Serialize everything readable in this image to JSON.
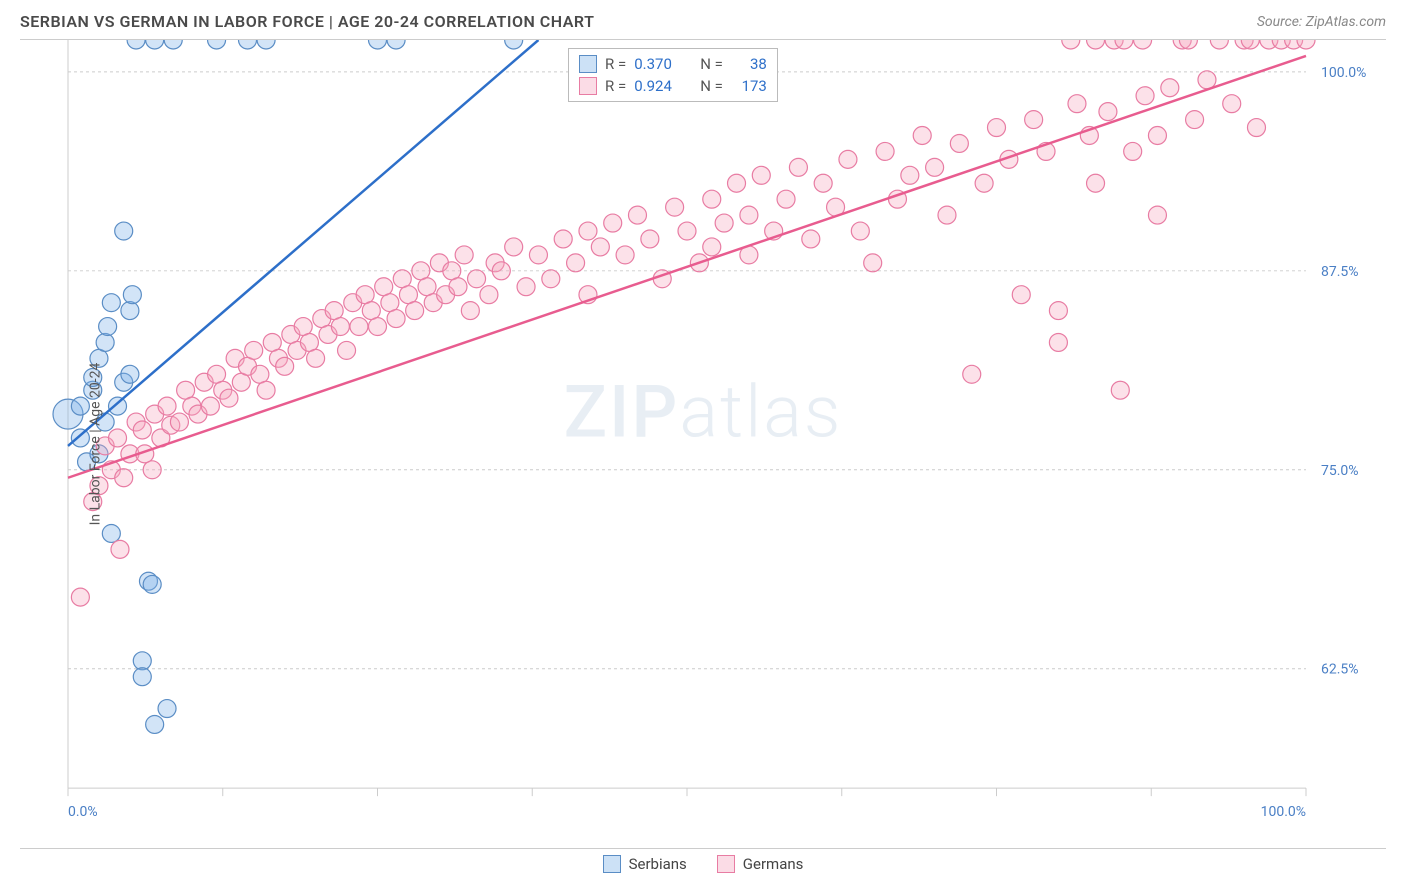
{
  "title": "SERBIAN VS GERMAN IN LABOR FORCE | AGE 20-24 CORRELATION CHART",
  "source": "Source: ZipAtlas.com",
  "watermark_prefix": "ZIP",
  "watermark_suffix": "atlas",
  "chart": {
    "type": "scatter",
    "background_color": "#ffffff",
    "grid_color": "#cccccc",
    "border_color": "#cccccc",
    "ylabel": "In Labor Force | Age 20-24",
    "ylabel_fontsize": 14,
    "ylabel_color": "#555555",
    "xlim": [
      0,
      100
    ],
    "ylim": [
      55,
      102
    ],
    "xtick_positions": [
      0,
      12.5,
      25,
      37.5,
      50,
      62.5,
      75,
      87.5,
      100
    ],
    "xtick_labels": {
      "0": "0.0%",
      "100": "100.0%"
    },
    "ytick_positions": [
      62.5,
      75.0,
      87.5,
      100.0
    ],
    "ytick_labels": [
      "62.5%",
      "75.0%",
      "87.5%",
      "100.0%"
    ],
    "axis_label_color": "#4a7fc5",
    "axis_label_fontsize": 14,
    "marker_radius": 9,
    "marker_radius_large": 15,
    "marker_opacity": 0.45,
    "line_width": 2.5,
    "series": [
      {
        "name": "Serbians",
        "legend_label": "Serbians",
        "color": "#7fb3e8",
        "fill_color": "rgba(127,179,232,0.35)",
        "stroke_color": "#5a8dc5",
        "line_color": "#2d6fc9",
        "R": "0.370",
        "N": "38",
        "trendline": {
          "x1": 0,
          "y1": 76.5,
          "x2": 38,
          "y2": 102
        },
        "points": [
          [
            0,
            78.5,
            15
          ],
          [
            1,
            77,
            9
          ],
          [
            1,
            79,
            9
          ],
          [
            1.5,
            75.5,
            9
          ],
          [
            2,
            80,
            9
          ],
          [
            2,
            80.8,
            9
          ],
          [
            2.5,
            82,
            9
          ],
          [
            2.5,
            76,
            9
          ],
          [
            3,
            78,
            9
          ],
          [
            3,
            83,
            9
          ],
          [
            3.2,
            84,
            9
          ],
          [
            3.5,
            85.5,
            9
          ],
          [
            3.5,
            71,
            9
          ],
          [
            4,
            79,
            9
          ],
          [
            4.5,
            80.5,
            9
          ],
          [
            4.5,
            90,
            9
          ],
          [
            5,
            81,
            9
          ],
          [
            5,
            85,
            9
          ],
          [
            5.2,
            86,
            9
          ],
          [
            6,
            63,
            9
          ],
          [
            6,
            62,
            9
          ],
          [
            6.5,
            68,
            9
          ],
          [
            6.8,
            67.8,
            9
          ],
          [
            7,
            59,
            9
          ],
          [
            8,
            60,
            9
          ],
          [
            5.5,
            102,
            9
          ],
          [
            7,
            102,
            9
          ],
          [
            8.5,
            102,
            9
          ],
          [
            12,
            102,
            9
          ],
          [
            14.5,
            102,
            9
          ],
          [
            16,
            102,
            9
          ],
          [
            25,
            102,
            9
          ],
          [
            26.5,
            102,
            9
          ],
          [
            36,
            102,
            9
          ]
        ]
      },
      {
        "name": "Germans",
        "legend_label": "Germans",
        "color": "#f5a8c0",
        "fill_color": "rgba(245,168,192,0.35)",
        "stroke_color": "#e87ca3",
        "line_color": "#e85c8f",
        "R": "0.924",
        "N": "173",
        "trendline": {
          "x1": 0,
          "y1": 74.5,
          "x2": 100,
          "y2": 101
        },
        "points": [
          [
            1,
            67,
            9
          ],
          [
            2,
            73,
            9
          ],
          [
            2.5,
            74,
            9
          ],
          [
            3,
            76.5,
            9
          ],
          [
            3.5,
            75,
            9
          ],
          [
            4,
            77,
            9
          ],
          [
            4.2,
            70,
            9
          ],
          [
            4.5,
            74.5,
            9
          ],
          [
            5,
            76,
            9
          ],
          [
            5.5,
            78,
            9
          ],
          [
            6,
            77.5,
            9
          ],
          [
            6.2,
            76,
            9
          ],
          [
            6.8,
            75,
            9
          ],
          [
            7,
            78.5,
            9
          ],
          [
            7.5,
            77,
            9
          ],
          [
            8,
            79,
            9
          ],
          [
            8.3,
            77.8,
            9
          ],
          [
            9,
            78,
            9
          ],
          [
            9.5,
            80,
            9
          ],
          [
            10,
            79,
            9
          ],
          [
            10.5,
            78.5,
            9
          ],
          [
            11,
            80.5,
            9
          ],
          [
            11.5,
            79,
            9
          ],
          [
            12,
            81,
            9
          ],
          [
            12.5,
            80,
            9
          ],
          [
            13,
            79.5,
            9
          ],
          [
            13.5,
            82,
            9
          ],
          [
            14,
            80.5,
            9
          ],
          [
            14.5,
            81.5,
            9
          ],
          [
            15,
            82.5,
            9
          ],
          [
            15.5,
            81,
            9
          ],
          [
            16,
            80,
            9
          ],
          [
            16.5,
            83,
            9
          ],
          [
            17,
            82,
            9
          ],
          [
            17.5,
            81.5,
            9
          ],
          [
            18,
            83.5,
            9
          ],
          [
            18.5,
            82.5,
            9
          ],
          [
            19,
            84,
            9
          ],
          [
            19.5,
            83,
            9
          ],
          [
            20,
            82,
            9
          ],
          [
            20.5,
            84.5,
            9
          ],
          [
            21,
            83.5,
            9
          ],
          [
            21.5,
            85,
            9
          ],
          [
            22,
            84,
            9
          ],
          [
            22.5,
            82.5,
            9
          ],
          [
            23,
            85.5,
            9
          ],
          [
            23.5,
            84,
            9
          ],
          [
            24,
            86,
            9
          ],
          [
            24.5,
            85,
            9
          ],
          [
            25,
            84,
            9
          ],
          [
            25.5,
            86.5,
            9
          ],
          [
            26,
            85.5,
            9
          ],
          [
            26.5,
            84.5,
            9
          ],
          [
            27,
            87,
            9
          ],
          [
            27.5,
            86,
            9
          ],
          [
            28,
            85,
            9
          ],
          [
            28.5,
            87.5,
            9
          ],
          [
            29,
            86.5,
            9
          ],
          [
            29.5,
            85.5,
            9
          ],
          [
            30,
            88,
            9
          ],
          [
            30.5,
            86,
            9
          ],
          [
            31,
            87.5,
            9
          ],
          [
            31.5,
            86.5,
            9
          ],
          [
            32,
            88.5,
            9
          ],
          [
            32.5,
            85,
            9
          ],
          [
            33,
            87,
            9
          ],
          [
            34,
            86,
            9
          ],
          [
            34.5,
            88,
            9
          ],
          [
            35,
            87.5,
            9
          ],
          [
            36,
            89,
            9
          ],
          [
            37,
            86.5,
            9
          ],
          [
            38,
            88.5,
            9
          ],
          [
            39,
            87,
            9
          ],
          [
            40,
            89.5,
            9
          ],
          [
            41,
            88,
            9
          ],
          [
            42,
            90,
            9
          ],
          [
            42,
            86,
            9
          ],
          [
            43,
            89,
            9
          ],
          [
            44,
            90.5,
            9
          ],
          [
            45,
            88.5,
            9
          ],
          [
            46,
            91,
            9
          ],
          [
            47,
            89.5,
            9
          ],
          [
            48,
            87,
            9
          ],
          [
            49,
            91.5,
            9
          ],
          [
            50,
            90,
            9
          ],
          [
            51,
            88,
            9
          ],
          [
            52,
            92,
            9
          ],
          [
            52,
            89,
            9
          ],
          [
            53,
            90.5,
            9
          ],
          [
            54,
            93,
            9
          ],
          [
            55,
            91,
            9
          ],
          [
            55,
            88.5,
            9
          ],
          [
            56,
            93.5,
            9
          ],
          [
            57,
            90,
            9
          ],
          [
            58,
            92,
            9
          ],
          [
            59,
            94,
            9
          ],
          [
            60,
            89.5,
            9
          ],
          [
            61,
            93,
            9
          ],
          [
            62,
            91.5,
            9
          ],
          [
            63,
            94.5,
            9
          ],
          [
            64,
            90,
            9
          ],
          [
            65,
            88,
            9
          ],
          [
            66,
            95,
            9
          ],
          [
            67,
            92,
            9
          ],
          [
            68,
            93.5,
            9
          ],
          [
            69,
            96,
            9
          ],
          [
            70,
            94,
            9
          ],
          [
            71,
            91,
            9
          ],
          [
            72,
            95.5,
            9
          ],
          [
            73,
            81,
            9
          ],
          [
            74,
            93,
            9
          ],
          [
            75,
            96.5,
            9
          ],
          [
            76,
            94.5,
            9
          ],
          [
            77,
            86,
            9
          ],
          [
            78,
            97,
            9
          ],
          [
            79,
            95,
            9
          ],
          [
            80,
            83,
            9
          ],
          [
            80,
            85,
            9
          ],
          [
            81,
            102,
            9
          ],
          [
            81.5,
            98,
            9
          ],
          [
            82.5,
            96,
            9
          ],
          [
            83,
            93,
            9
          ],
          [
            83,
            102,
            9
          ],
          [
            84,
            97.5,
            9
          ],
          [
            84.5,
            102,
            9
          ],
          [
            85,
            80,
            9
          ],
          [
            85.3,
            102,
            9
          ],
          [
            86,
            95,
            9
          ],
          [
            86.8,
            102,
            9
          ],
          [
            87,
            98.5,
            9
          ],
          [
            88,
            96,
            9
          ],
          [
            88,
            91,
            9
          ],
          [
            89,
            99,
            9
          ],
          [
            90,
            102,
            9
          ],
          [
            90.5,
            102,
            9
          ],
          [
            91,
            97,
            9
          ],
          [
            92,
            99.5,
            9
          ],
          [
            93,
            102,
            9
          ],
          [
            94,
            98,
            9
          ],
          [
            95,
            102,
            9
          ],
          [
            95.5,
            102,
            9
          ],
          [
            96,
            96.5,
            9
          ],
          [
            97,
            102,
            9
          ],
          [
            98,
            102,
            9
          ],
          [
            99,
            102,
            9
          ],
          [
            100,
            102,
            9
          ]
        ]
      }
    ]
  },
  "legend_top": {
    "rows": [
      {
        "swatch_fill": "rgba(127,179,232,0.4)",
        "swatch_border": "#5a8dc5",
        "r_label": "R =",
        "r_value": "0.370",
        "n_label": "N =",
        "n_value": "38"
      },
      {
        "swatch_fill": "rgba(245,168,192,0.4)",
        "swatch_border": "#e87ca3",
        "r_label": "R =",
        "r_value": "0.924",
        "n_label": "N =",
        "n_value": "173"
      }
    ],
    "text_color": "#555555",
    "value_color": "#2d6fc9"
  },
  "legend_bottom": {
    "items": [
      {
        "swatch_fill": "rgba(127,179,232,0.4)",
        "swatch_border": "#5a8dc5",
        "label": "Serbians"
      },
      {
        "swatch_fill": "rgba(245,168,192,0.4)",
        "swatch_border": "#e87ca3",
        "label": "Germans"
      }
    ]
  }
}
